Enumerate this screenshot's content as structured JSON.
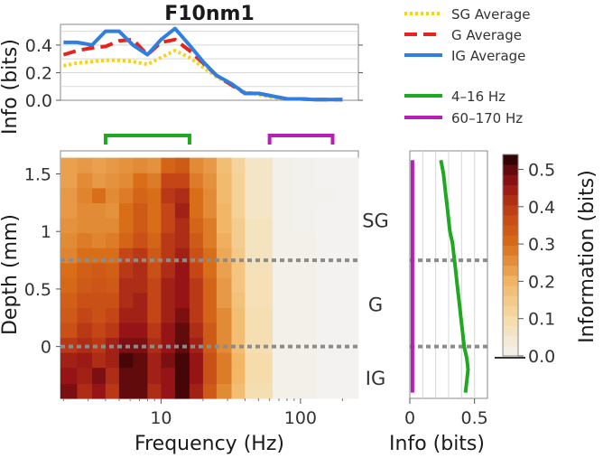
{
  "colors": {
    "sg": "#f5d21e",
    "g": "#e8231a",
    "ig": "#2f7fe0",
    "band_low": "#21a821",
    "band_high": "#b61fb6",
    "boundary": "#8c8c8c",
    "layer_text": "#333333"
  },
  "chart_data": [
    {
      "type": "line",
      "title": "F10nm1",
      "xlabel": "",
      "ylabel": "Info (bits)",
      "xscale": "log",
      "xlim": [
        1.9,
        260
      ],
      "ylim": [
        0,
        0.55
      ],
      "yticks": [
        0.0,
        0.2,
        0.4
      ],
      "ytick_labels": [
        "0.0",
        "0.2",
        "0.4"
      ],
      "grid": true,
      "legend_position": "right, outside",
      "x": [
        2,
        2.5,
        3.2,
        4,
        5,
        6.3,
        8,
        10,
        12.6,
        16,
        20,
        25,
        32,
        40,
        50,
        63,
        80,
        100,
        126,
        160,
        200
      ],
      "series": [
        {
          "name": "SG Average",
          "color_key": "sg",
          "style": "dotted",
          "values": [
            0.25,
            0.27,
            0.28,
            0.29,
            0.29,
            0.28,
            0.26,
            0.31,
            0.36,
            0.31,
            0.24,
            0.17,
            0.11,
            0.06,
            0.04,
            0.02,
            0.01,
            0.01,
            0.005,
            0.005,
            0.005
          ]
        },
        {
          "name": "G Average",
          "color_key": "g",
          "style": "dashed",
          "values": [
            0.33,
            0.36,
            0.38,
            0.39,
            0.43,
            0.44,
            0.33,
            0.42,
            0.44,
            0.36,
            0.27,
            0.18,
            0.11,
            0.05,
            0.05,
            0.03,
            0.01,
            0.01,
            0.005,
            0.005,
            0.005
          ]
        },
        {
          "name": "IG Average",
          "color_key": "ig",
          "style": "solid",
          "values": [
            0.42,
            0.42,
            0.4,
            0.5,
            0.5,
            0.4,
            0.33,
            0.44,
            0.52,
            0.4,
            0.28,
            0.18,
            0.12,
            0.05,
            0.05,
            0.03,
            0.01,
            0.01,
            0.005,
            0.005,
            0.005
          ]
        }
      ]
    },
    {
      "type": "heatmap",
      "xlabel": "Frequency (Hz)",
      "ylabel": "Depth (mm)",
      "xscale": "log",
      "xlim": [
        1.9,
        260
      ],
      "ylim": [
        -0.45,
        1.7
      ],
      "xticks": [
        10,
        100
      ],
      "xtick_labels": [
        "10",
        "100"
      ],
      "yticks": [
        1.5,
        1.0,
        0.5,
        0.0
      ],
      "ytick_labels": [
        "1.5",
        "1",
        "0.5",
        "0"
      ],
      "x_edges": [
        1.9,
        2.5,
        3.2,
        4,
        5,
        6.3,
        8,
        10,
        12.6,
        16,
        20,
        25,
        32,
        40,
        63,
        90,
        130,
        180,
        260
      ],
      "y_edges": [
        -0.45,
        -0.32,
        -0.18,
        -0.05,
        0.08,
        0.21,
        0.34,
        0.47,
        0.6,
        0.73,
        0.86,
        0.99,
        1.12,
        1.25,
        1.38,
        1.51,
        1.64
      ],
      "colorbar": {
        "label": "Information (bits)",
        "ticks": [
          0.0,
          0.1,
          0.2,
          0.3,
          0.4,
          0.5
        ],
        "tick_labels": [
          "0.0",
          "0.1",
          "0.2",
          "0.3",
          "0.4",
          "0.5"
        ],
        "range": [
          0,
          0.54
        ]
      },
      "values": [
        [
          0.48,
          0.42,
          0.46,
          0.4,
          0.5,
          0.5,
          0.42,
          0.46,
          0.52,
          0.44,
          0.34,
          0.26,
          0.18,
          0.09,
          0.01,
          0.01,
          0.0,
          0.0
        ],
        [
          0.46,
          0.44,
          0.48,
          0.42,
          0.5,
          0.5,
          0.44,
          0.46,
          0.52,
          0.46,
          0.36,
          0.28,
          0.2,
          0.1,
          0.01,
          0.01,
          0.0,
          0.0
        ],
        [
          0.44,
          0.45,
          0.42,
          0.44,
          0.52,
          0.5,
          0.44,
          0.48,
          0.52,
          0.46,
          0.36,
          0.28,
          0.2,
          0.1,
          0.01,
          0.01,
          0.0,
          0.0
        ],
        [
          0.4,
          0.42,
          0.4,
          0.44,
          0.48,
          0.48,
          0.42,
          0.46,
          0.5,
          0.44,
          0.34,
          0.26,
          0.18,
          0.09,
          0.01,
          0.01,
          0.0,
          0.0
        ],
        [
          0.36,
          0.4,
          0.38,
          0.4,
          0.46,
          0.46,
          0.4,
          0.46,
          0.5,
          0.42,
          0.34,
          0.26,
          0.18,
          0.09,
          0.01,
          0.01,
          0.0,
          0.0
        ],
        [
          0.34,
          0.38,
          0.36,
          0.38,
          0.44,
          0.44,
          0.38,
          0.44,
          0.48,
          0.4,
          0.32,
          0.26,
          0.18,
          0.09,
          0.01,
          0.01,
          0.0,
          0.0
        ],
        [
          0.33,
          0.36,
          0.36,
          0.36,
          0.42,
          0.44,
          0.38,
          0.44,
          0.46,
          0.4,
          0.32,
          0.24,
          0.17,
          0.08,
          0.01,
          0.01,
          0.0,
          0.0
        ],
        [
          0.31,
          0.34,
          0.35,
          0.34,
          0.42,
          0.42,
          0.38,
          0.44,
          0.46,
          0.4,
          0.32,
          0.24,
          0.16,
          0.08,
          0.01,
          0.01,
          0.0,
          0.0
        ],
        [
          0.3,
          0.33,
          0.34,
          0.33,
          0.4,
          0.42,
          0.36,
          0.42,
          0.46,
          0.38,
          0.3,
          0.23,
          0.16,
          0.08,
          0.01,
          0.01,
          0.0,
          0.0
        ],
        [
          0.27,
          0.3,
          0.3,
          0.3,
          0.38,
          0.4,
          0.34,
          0.4,
          0.44,
          0.36,
          0.3,
          0.22,
          0.15,
          0.07,
          0.01,
          0.01,
          0.0,
          0.0
        ],
        [
          0.26,
          0.28,
          0.27,
          0.28,
          0.32,
          0.36,
          0.32,
          0.4,
          0.42,
          0.34,
          0.28,
          0.21,
          0.14,
          0.07,
          0.01,
          0.01,
          0.0,
          0.0
        ],
        [
          0.25,
          0.26,
          0.26,
          0.26,
          0.3,
          0.34,
          0.3,
          0.38,
          0.42,
          0.32,
          0.28,
          0.2,
          0.14,
          0.07,
          0.01,
          0.005,
          0.0,
          0.0
        ],
        [
          0.24,
          0.26,
          0.26,
          0.25,
          0.3,
          0.34,
          0.3,
          0.38,
          0.44,
          0.3,
          0.26,
          0.2,
          0.13,
          0.06,
          0.01,
          0.005,
          0.0,
          0.0
        ],
        [
          0.24,
          0.27,
          0.3,
          0.26,
          0.28,
          0.32,
          0.3,
          0.4,
          0.42,
          0.3,
          0.26,
          0.19,
          0.13,
          0.06,
          0.01,
          0.005,
          0.005,
          0.0
        ],
        [
          0.23,
          0.26,
          0.24,
          0.25,
          0.26,
          0.3,
          0.28,
          0.38,
          0.38,
          0.28,
          0.25,
          0.19,
          0.13,
          0.06,
          0.01,
          0.005,
          0.0,
          0.0
        ],
        [
          0.23,
          0.24,
          0.23,
          0.24,
          0.25,
          0.26,
          0.25,
          0.32,
          0.34,
          0.26,
          0.24,
          0.18,
          0.12,
          0.06,
          0.01,
          0.005,
          0.0,
          0.0
        ]
      ],
      "band_markers": [
        {
          "name": "4–16 Hz",
          "range": [
            4,
            16
          ],
          "color_key": "band_low"
        },
        {
          "name": "60–170 Hz",
          "range": [
            60,
            170
          ],
          "color_key": "band_high"
        }
      ],
      "layer_boundaries": [
        0.75,
        0.0
      ],
      "layer_labels": [
        {
          "text": "SG",
          "depth": 1.1
        },
        {
          "text": "G",
          "depth": 0.37
        },
        {
          "text": "IG",
          "depth": -0.27
        }
      ]
    },
    {
      "type": "line",
      "xlabel": "Info (bits)",
      "ylabel": "",
      "xlim": [
        0,
        0.6
      ],
      "ylim": [
        -0.45,
        1.7
      ],
      "xticks": [
        0,
        0.5
      ],
      "xtick_labels": [
        "0",
        "0.5"
      ],
      "grid": true,
      "depth": [
        1.62,
        1.5,
        1.4,
        1.3,
        1.2,
        1.1,
        1.0,
        0.9,
        0.8,
        0.7,
        0.6,
        0.5,
        0.4,
        0.3,
        0.2,
        0.1,
        0.0,
        -0.1,
        -0.2,
        -0.3,
        -0.4
      ],
      "series": [
        {
          "name": "4–16 Hz",
          "color_key": "band_low",
          "values": [
            0.24,
            0.26,
            0.27,
            0.28,
            0.29,
            0.3,
            0.31,
            0.33,
            0.34,
            0.35,
            0.36,
            0.37,
            0.38,
            0.39,
            0.4,
            0.41,
            0.42,
            0.44,
            0.45,
            0.44,
            0.43
          ]
        },
        {
          "name": "60–170 Hz",
          "color_key": "band_high",
          "values": [
            0.02,
            0.02,
            0.02,
            0.02,
            0.02,
            0.02,
            0.02,
            0.02,
            0.02,
            0.02,
            0.02,
            0.02,
            0.02,
            0.02,
            0.02,
            0.02,
            0.02,
            0.02,
            0.02,
            0.02,
            0.02
          ]
        }
      ]
    }
  ]
}
